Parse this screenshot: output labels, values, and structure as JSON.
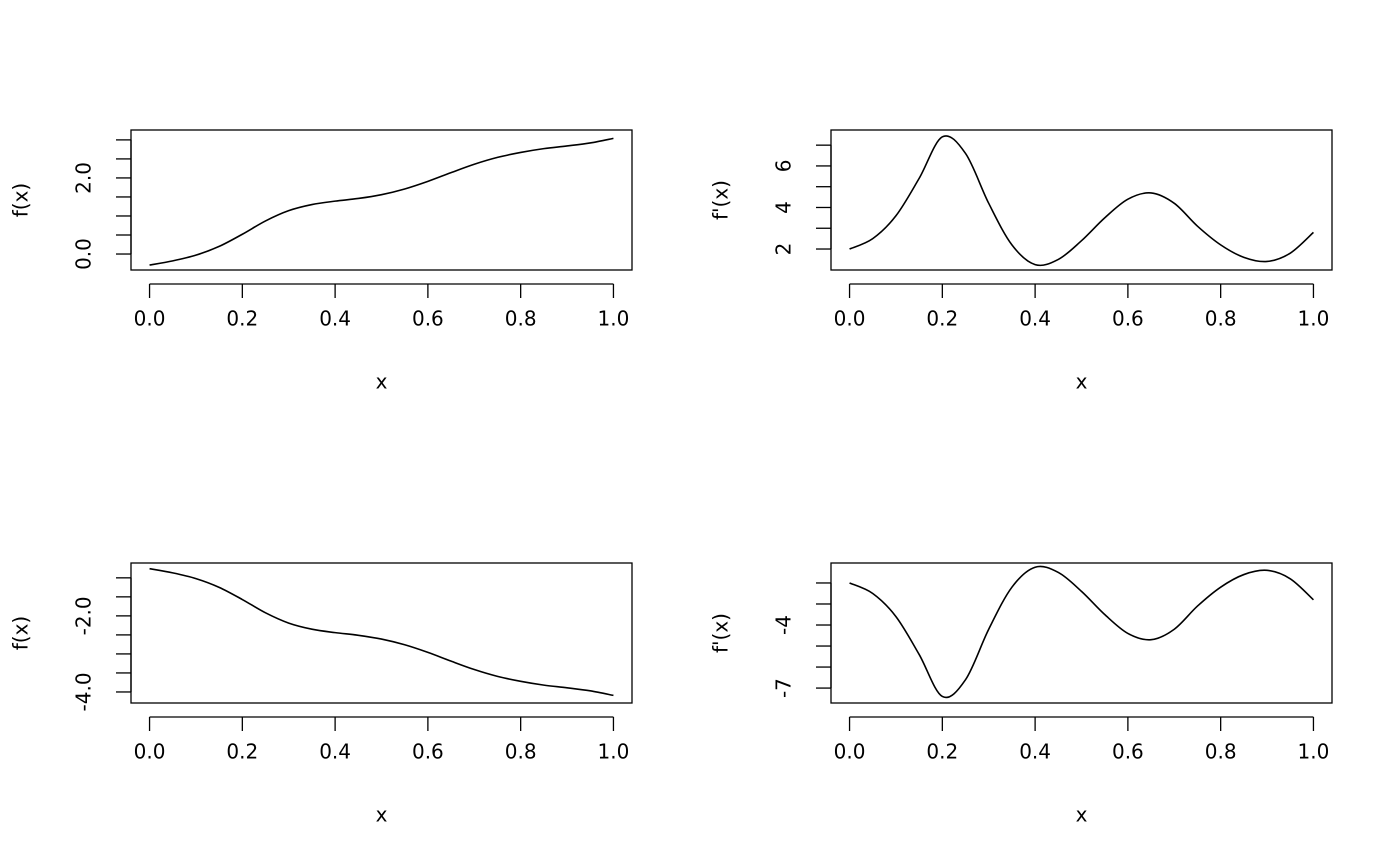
{
  "chart_data": [
    {
      "type": "line",
      "xlabel": "x",
      "ylabel": "f(x)",
      "color": "#000000",
      "x": [
        0,
        0.05,
        0.1,
        0.15,
        0.2,
        0.25,
        0.3,
        0.35,
        0.4,
        0.45,
        0.5,
        0.55,
        0.6,
        0.65,
        0.7,
        0.75,
        0.8,
        0.85,
        0.9,
        0.95,
        1
      ],
      "values": [
        -0.29,
        -0.18,
        -0.03,
        0.2,
        0.52,
        0.87,
        1.14,
        1.3,
        1.39,
        1.46,
        1.56,
        1.71,
        1.91,
        2.14,
        2.36,
        2.54,
        2.67,
        2.77,
        2.84,
        2.92,
        3.04
      ],
      "xlim": [
        -0.04,
        1.04
      ],
      "ylim": [
        -0.42,
        3.26
      ],
      "xticks": [
        {
          "value": 0,
          "label": "0.0"
        },
        {
          "value": 0.2,
          "label": "0.2"
        },
        {
          "value": 0.4,
          "label": "0.4"
        },
        {
          "value": 0.6,
          "label": "0.6"
        },
        {
          "value": 0.8,
          "label": "0.8"
        },
        {
          "value": 1,
          "label": "1.0"
        }
      ],
      "yticks": [
        {
          "value": 0,
          "label": "0.0"
        },
        {
          "value": 2,
          "label": "2.0"
        }
      ],
      "minor_yticks": [
        0.5,
        1,
        1.5,
        2.5,
        3
      ]
    },
    {
      "type": "line",
      "xlabel": "x",
      "ylabel": "f'(x)",
      "color": "#000000",
      "x": [
        0,
        0.05,
        0.1,
        0.15,
        0.2,
        0.25,
        0.3,
        0.35,
        0.4,
        0.45,
        0.5,
        0.55,
        0.6,
        0.65,
        0.7,
        0.75,
        0.8,
        0.85,
        0.9,
        0.95,
        1
      ],
      "values": [
        2.0,
        2.5,
        3.6,
        5.4,
        7.4,
        6.6,
        4.2,
        2.2,
        1.25,
        1.5,
        2.4,
        3.5,
        4.4,
        4.7,
        4.2,
        3.1,
        2.2,
        1.6,
        1.4,
        1.8,
        2.8
      ],
      "xlim": [
        -0.04,
        1.04
      ],
      "ylim": [
        0.99,
        7.73
      ],
      "xticks": [
        {
          "value": 0,
          "label": "0.0"
        },
        {
          "value": 0.2,
          "label": "0.2"
        },
        {
          "value": 0.4,
          "label": "0.4"
        },
        {
          "value": 0.6,
          "label": "0.6"
        },
        {
          "value": 0.8,
          "label": "0.8"
        },
        {
          "value": 1,
          "label": "1.0"
        }
      ],
      "yticks": [
        2,
        4,
        6
      ],
      "minor_yticks": [
        3,
        5,
        7
      ]
    },
    {
      "type": "line",
      "xlabel": "x",
      "ylabel": "f(x)",
      "color": "#000000",
      "x": [
        0,
        0.05,
        0.1,
        0.15,
        0.2,
        0.25,
        0.3,
        0.35,
        0.4,
        0.45,
        0.5,
        0.55,
        0.6,
        0.65,
        0.7,
        0.75,
        0.8,
        0.85,
        0.9,
        0.95,
        1
      ],
      "values": [
        -0.76,
        -0.87,
        -1.02,
        -1.25,
        -1.57,
        -1.92,
        -2.19,
        -2.35,
        -2.44,
        -2.51,
        -2.61,
        -2.76,
        -2.96,
        -3.19,
        -3.41,
        -3.59,
        -3.72,
        -3.82,
        -3.89,
        -3.97,
        -4.09
      ],
      "xlim": [
        -0.04,
        1.04
      ],
      "ylim": [
        -4.29,
        -0.61
      ],
      "xticks": [
        {
          "value": 0,
          "label": "0.0"
        },
        {
          "value": 0.2,
          "label": "0.2"
        },
        {
          "value": 0.4,
          "label": "0.4"
        },
        {
          "value": 0.6,
          "label": "0.6"
        },
        {
          "value": 0.8,
          "label": "0.8"
        },
        {
          "value": 1,
          "label": "1.0"
        }
      ],
      "yticks": [
        {
          "value": -2,
          "label": "-2.0"
        },
        {
          "value": -4,
          "label": "-4.0"
        }
      ],
      "minor_yticks": [
        -1,
        -1.5,
        -2.5,
        -3,
        -3.5
      ]
    },
    {
      "type": "line",
      "xlabel": "x",
      "ylabel": "f'(x)",
      "color": "#000000",
      "x": [
        0,
        0.05,
        0.1,
        0.15,
        0.2,
        0.25,
        0.3,
        0.35,
        0.4,
        0.45,
        0.5,
        0.55,
        0.6,
        0.65,
        0.7,
        0.75,
        0.8,
        0.85,
        0.9,
        0.95,
        1
      ],
      "values": [
        -2.0,
        -2.5,
        -3.6,
        -5.4,
        -7.4,
        -6.6,
        -4.2,
        -2.2,
        -1.25,
        -1.5,
        -2.4,
        -3.5,
        -4.4,
        -4.7,
        -4.2,
        -3.1,
        -2.2,
        -1.6,
        -1.4,
        -1.8,
        -2.8
      ],
      "xlim": [
        -0.04,
        1.04
      ],
      "ylim": [
        -7.71,
        -1.05
      ],
      "xticks": [
        {
          "value": 0,
          "label": "0.0"
        },
        {
          "value": 0.2,
          "label": "0.2"
        },
        {
          "value": 0.4,
          "label": "0.4"
        },
        {
          "value": 0.6,
          "label": "0.6"
        },
        {
          "value": 0.8,
          "label": "0.8"
        },
        {
          "value": 1,
          "label": "1.0"
        }
      ],
      "yticks": [
        -4,
        -7
      ],
      "minor_yticks": [
        -2,
        -3,
        -5,
        -6
      ]
    }
  ]
}
